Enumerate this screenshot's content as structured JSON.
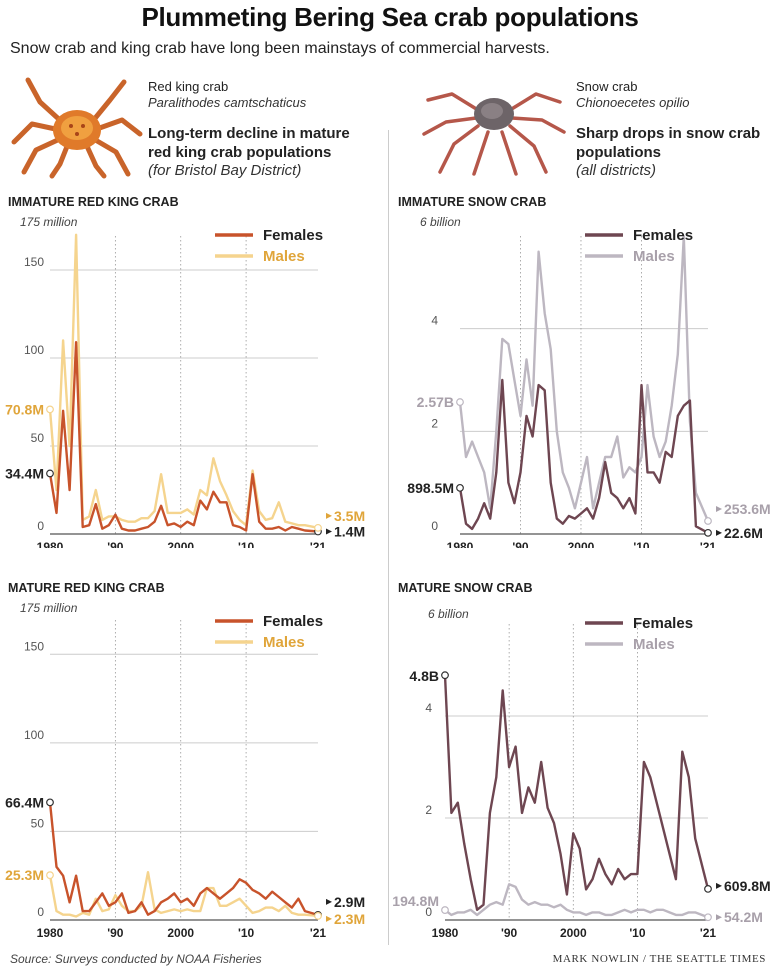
{
  "header": {
    "title": "Plummeting Bering Sea crab populations",
    "subtitle": "Snow crab and king crab have long been mainstays of commercial harvests."
  },
  "red_king": {
    "name": "Red king crab",
    "latin": "Paralithodes camtschaticus",
    "headline_1": "Long-term decline in mature",
    "headline_2": "red king crab populations",
    "note": "(for Bristol Bay District)"
  },
  "snow": {
    "name": "Snow crab",
    "latin": "Chionoecetes opilio",
    "headline_1": "Sharp drops in snow crab",
    "headline_2": "populations",
    "note": "(all districts)"
  },
  "footer": {
    "source": "Source: Surveys conducted by NOAA Fisheries",
    "credit": "MARK NOWLIN / THE SEATTLE TIMES"
  },
  "colors": {
    "rk_female": "#c8532b",
    "rk_male": "#f5d48e",
    "rk_male_label": "#e0a53a",
    "sc_female": "#6e4651",
    "sc_male": "#bdb7c1",
    "sc_male_label": "#a8a0aa"
  },
  "chart_data": [
    {
      "type": "line",
      "title": "IMMATURE RED KING CRAB",
      "unit_label": "175 million",
      "x": [
        1980,
        1981,
        1982,
        1983,
        1984,
        1985,
        1986,
        1987,
        1988,
        1989,
        1990,
        1991,
        1992,
        1993,
        1994,
        1995,
        1996,
        1997,
        1998,
        1999,
        2000,
        2001,
        2002,
        2003,
        2004,
        2005,
        2006,
        2007,
        2008,
        2009,
        2010,
        2011,
        2012,
        2013,
        2014,
        2015,
        2016,
        2017,
        2018,
        2019,
        2021
      ],
      "ylim": [
        0,
        175
      ],
      "yticks": [
        0,
        50,
        100,
        150
      ],
      "xticks": [
        "1980",
        "'90",
        "2000",
        "'10",
        "'21"
      ],
      "series": [
        {
          "name": "Females",
          "values": [
            34.4,
            12,
            70,
            25,
            109,
            4,
            5,
            17,
            3,
            5,
            11,
            3,
            2,
            2,
            3,
            4,
            7,
            16,
            5,
            6,
            4,
            7,
            5,
            19,
            14,
            24,
            18,
            18,
            5,
            4,
            2,
            34,
            7,
            3,
            3,
            4,
            2,
            4,
            3,
            2,
            1.4
          ]
        },
        {
          "name": "Males",
          "values": [
            70.8,
            25,
            110,
            50,
            170,
            8,
            10,
            25,
            8,
            10,
            10,
            8,
            7,
            7,
            9,
            9,
            13,
            34,
            12,
            12,
            12,
            14,
            11,
            25,
            22,
            43,
            30,
            22,
            13,
            8,
            5,
            36,
            13,
            8,
            9,
            18,
            7,
            6,
            5,
            5,
            3.5
          ]
        }
      ],
      "start_labels": [
        "34.4M",
        "70.8M"
      ],
      "end_labels": [
        "1.4M",
        "3.5M"
      ]
    },
    {
      "type": "line",
      "title": "IMMATURE SNOW CRAB",
      "unit_label": "6 billion",
      "x": [
        1980,
        1981,
        1982,
        1983,
        1984,
        1985,
        1986,
        1987,
        1988,
        1989,
        1990,
        1991,
        1992,
        1993,
        1994,
        1995,
        1996,
        1997,
        1998,
        1999,
        2000,
        2001,
        2002,
        2003,
        2004,
        2005,
        2006,
        2007,
        2008,
        2009,
        2010,
        2011,
        2012,
        2013,
        2014,
        2015,
        2016,
        2017,
        2018,
        2019,
        2021
      ],
      "ylim": [
        0,
        6
      ],
      "yticks": [
        0,
        2,
        4
      ],
      "xticks": [
        "1980",
        "'90",
        "2000",
        "'10",
        "'21"
      ],
      "series": [
        {
          "name": "Females",
          "values": [
            0.8985,
            0.2,
            0.1,
            0.3,
            0.6,
            0.3,
            1.2,
            3.0,
            1.0,
            0.6,
            1.2,
            2.3,
            1.9,
            2.9,
            2.8,
            1.0,
            0.3,
            0.2,
            0.35,
            0.3,
            0.4,
            0.5,
            0.3,
            0.7,
            1.4,
            0.8,
            0.7,
            0.5,
            0.7,
            0.4,
            2.9,
            1.2,
            1.2,
            1.0,
            1.6,
            1.5,
            2.3,
            2.5,
            2.6,
            0.15,
            0.0226
          ]
        },
        {
          "name": "Males",
          "values": [
            2.57,
            1.5,
            1.8,
            1.5,
            1.2,
            0.5,
            2.0,
            3.8,
            3.7,
            3.0,
            2.3,
            3.4,
            2.5,
            5.5,
            4.3,
            3.6,
            2.0,
            1.2,
            0.9,
            0.5,
            1.0,
            1.5,
            0.5,
            1.0,
            1.5,
            1.5,
            1.9,
            1.1,
            1.3,
            1.2,
            1.5,
            2.9,
            1.9,
            1.5,
            1.8,
            2.5,
            3.5,
            5.8,
            2.2,
            0.8,
            0.2536
          ]
        }
      ],
      "start_labels": [
        "898.5M",
        "2.57B"
      ],
      "end_labels": [
        "22.6M",
        "253.6M"
      ]
    },
    {
      "type": "line",
      "title": "MATURE RED KING CRAB",
      "unit_label": "175  million",
      "x": [
        1980,
        1981,
        1982,
        1983,
        1984,
        1985,
        1986,
        1987,
        1988,
        1989,
        1990,
        1991,
        1992,
        1993,
        1994,
        1995,
        1996,
        1997,
        1998,
        1999,
        2000,
        2001,
        2002,
        2003,
        2004,
        2005,
        2006,
        2007,
        2008,
        2009,
        2010,
        2011,
        2012,
        2013,
        2014,
        2015,
        2016,
        2017,
        2018,
        2019,
        2021
      ],
      "ylim": [
        0,
        175
      ],
      "yticks": [
        0,
        50,
        100,
        150
      ],
      "xticks": [
        "1980",
        "'90",
        "2000",
        "'10",
        "'21"
      ],
      "series": [
        {
          "name": "Females",
          "values": [
            66.4,
            30,
            25,
            10,
            25,
            5,
            5,
            10,
            15,
            8,
            10,
            15,
            4,
            5,
            10,
            3,
            5,
            10,
            12,
            15,
            10,
            12,
            8,
            15,
            18,
            15,
            12,
            15,
            18,
            23,
            21,
            17,
            15,
            12,
            16,
            13,
            10,
            7,
            12,
            5,
            2.9
          ]
        },
        {
          "name": "Males",
          "values": [
            25.3,
            5,
            3,
            3,
            2,
            4,
            3,
            12,
            5,
            6,
            14,
            8,
            5,
            5,
            8,
            27,
            6,
            4,
            5,
            6,
            5,
            6,
            5,
            5,
            18,
            18,
            8,
            8,
            10,
            12,
            8,
            4,
            5,
            7,
            7,
            5,
            8,
            4,
            3,
            3,
            2.3
          ]
        }
      ],
      "start_labels": [
        "66.4M",
        "25.3M"
      ],
      "end_labels": [
        "2.9M",
        "2.3M"
      ]
    },
    {
      "type": "line",
      "title": "MATURE SNOW CRAB",
      "unit_label": "6 billion",
      "x": [
        1980,
        1981,
        1982,
        1983,
        1984,
        1985,
        1986,
        1987,
        1988,
        1989,
        1990,
        1991,
        1992,
        1993,
        1994,
        1995,
        1996,
        1997,
        1998,
        1999,
        2000,
        2001,
        2002,
        2003,
        2004,
        2005,
        2006,
        2007,
        2008,
        2009,
        2010,
        2011,
        2012,
        2013,
        2014,
        2015,
        2016,
        2017,
        2018,
        2019,
        2021
      ],
      "ylim": [
        0,
        6
      ],
      "yticks": [
        0,
        2,
        4
      ],
      "xticks": [
        "1980",
        "'90",
        "2000",
        "'10",
        "'21"
      ],
      "series": [
        {
          "name": "Females",
          "values": [
            4.8,
            2.1,
            2.3,
            1.5,
            0.8,
            0.2,
            0.3,
            2.1,
            2.8,
            4.5,
            3.0,
            3.4,
            2.1,
            2.6,
            2.3,
            3.1,
            2.2,
            1.9,
            1.3,
            0.5,
            1.7,
            1.4,
            0.6,
            0.8,
            1.2,
            0.9,
            0.7,
            1.0,
            0.8,
            0.9,
            0.9,
            3.1,
            2.8,
            2.3,
            1.8,
            1.3,
            0.8,
            3.3,
            2.8,
            1.6,
            0.6098
          ]
        },
        {
          "name": "Males",
          "values": [
            0.1948,
            0.1,
            0.15,
            0.15,
            0.2,
            0.1,
            0.2,
            0.3,
            0.35,
            0.3,
            0.7,
            0.65,
            0.4,
            0.3,
            0.35,
            0.3,
            0.3,
            0.25,
            0.3,
            0.2,
            0.15,
            0.15,
            0.1,
            0.15,
            0.15,
            0.1,
            0.1,
            0.15,
            0.2,
            0.15,
            0.2,
            0.2,
            0.15,
            0.2,
            0.2,
            0.15,
            0.1,
            0.1,
            0.15,
            0.15,
            0.0542
          ]
        }
      ],
      "start_labels": [
        "4.8B",
        "194.8M"
      ],
      "end_labels": [
        "609.8M",
        "54.2M"
      ]
    }
  ]
}
